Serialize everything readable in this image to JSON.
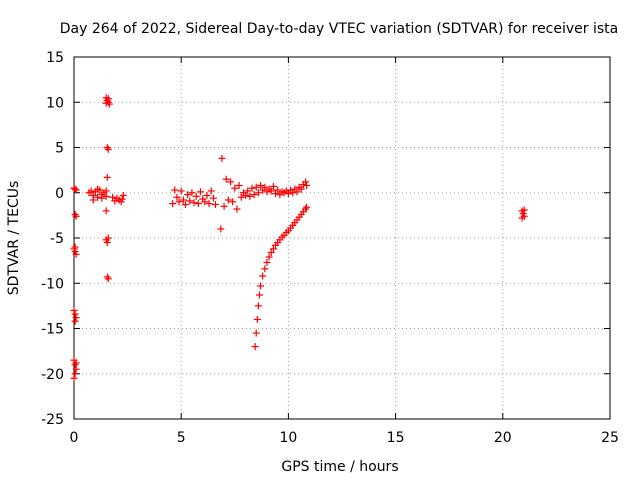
{
  "chart_data": {
    "type": "scatter",
    "title": "Day 264 of 2022, Sidereal Day-to-day VTEC variation (SDTVAR) for receiver ista",
    "xlabel": "GPS time / hours",
    "ylabel": "SDTVAR / TECUs",
    "xlim": [
      0,
      25
    ],
    "ylim": [
      -25,
      15
    ],
    "xticks": [
      0,
      5,
      10,
      15,
      20,
      25
    ],
    "yticks": [
      -25,
      -20,
      -15,
      -10,
      -5,
      0,
      5,
      10,
      15
    ],
    "grid": true,
    "marker": "+",
    "color": "#ff0000",
    "series": [
      {
        "name": "SDTVAR",
        "points": [
          [
            0.0,
            0.5
          ],
          [
            0.05,
            0.4
          ],
          [
            0.1,
            0.3
          ],
          [
            0.05,
            -2.4
          ],
          [
            0.1,
            -2.6
          ],
          [
            0.0,
            -6.2
          ],
          [
            0.05,
            -6.5
          ],
          [
            0.1,
            -6.8
          ],
          [
            0.05,
            -6.0
          ],
          [
            0.0,
            -13.0
          ],
          [
            0.05,
            -13.4
          ],
          [
            0.1,
            -13.8
          ],
          [
            0.05,
            -14.2
          ],
          [
            0.0,
            -18.5
          ],
          [
            0.05,
            -19.0
          ],
          [
            0.1,
            -19.5
          ],
          [
            0.05,
            -20.0
          ],
          [
            0.0,
            -20.5
          ],
          [
            0.1,
            -18.8
          ],
          [
            0.7,
            0.0
          ],
          [
            0.8,
            0.2
          ],
          [
            0.9,
            -0.3
          ],
          [
            1.0,
            0.1
          ],
          [
            1.1,
            -0.5
          ],
          [
            1.2,
            0.3
          ],
          [
            1.3,
            -0.2
          ],
          [
            1.4,
            0.0
          ],
          [
            1.5,
            -0.4
          ],
          [
            0.9,
            -0.8
          ],
          [
            1.1,
            0.4
          ],
          [
            1.3,
            -0.6
          ],
          [
            1.5,
            0.2
          ],
          [
            1.5,
            10.5
          ],
          [
            1.55,
            10.2
          ],
          [
            1.6,
            10.0
          ],
          [
            1.65,
            9.8
          ],
          [
            1.5,
            9.9
          ],
          [
            1.6,
            10.4
          ],
          [
            1.55,
            5.0
          ],
          [
            1.6,
            4.8
          ],
          [
            1.55,
            1.7
          ],
          [
            1.5,
            -2.0
          ],
          [
            1.5,
            -5.2
          ],
          [
            1.55,
            -5.5
          ],
          [
            1.6,
            -5.0
          ],
          [
            1.55,
            -9.3
          ],
          [
            1.6,
            -9.5
          ],
          [
            1.8,
            -0.5
          ],
          [
            1.9,
            -0.9
          ],
          [
            2.0,
            -0.6
          ],
          [
            2.1,
            -0.8
          ],
          [
            2.2,
            -1.0
          ],
          [
            2.3,
            -0.3
          ],
          [
            2.25,
            -0.7
          ],
          [
            4.6,
            -1.2
          ],
          [
            4.7,
            0.3
          ],
          [
            4.8,
            -0.5
          ],
          [
            4.9,
            -1.0
          ],
          [
            5.0,
            0.2
          ],
          [
            5.1,
            -0.8
          ],
          [
            5.2,
            -1.3
          ],
          [
            5.3,
            -0.2
          ],
          [
            5.4,
            -0.9
          ],
          [
            5.5,
            0.0
          ],
          [
            5.6,
            -1.1
          ],
          [
            5.7,
            -0.4
          ],
          [
            5.8,
            -1.2
          ],
          [
            5.9,
            0.1
          ],
          [
            6.0,
            -0.7
          ],
          [
            6.1,
            -1.0
          ],
          [
            6.2,
            -0.3
          ],
          [
            6.3,
            -1.2
          ],
          [
            6.4,
            0.2
          ],
          [
            6.5,
            -0.6
          ],
          [
            6.6,
            -1.3
          ],
          [
            6.9,
            3.8
          ],
          [
            6.85,
            -4.0
          ],
          [
            7.0,
            -1.5
          ],
          [
            7.1,
            1.5
          ],
          [
            7.2,
            -0.8
          ],
          [
            7.3,
            1.2
          ],
          [
            7.4,
            -1.0
          ],
          [
            7.5,
            0.5
          ],
          [
            7.6,
            -1.8
          ],
          [
            7.7,
            0.8
          ],
          [
            7.8,
            -0.5
          ],
          [
            7.9,
            0.0
          ],
          [
            8.0,
            -0.3
          ],
          [
            8.1,
            0.2
          ],
          [
            8.2,
            -0.4
          ],
          [
            8.3,
            0.5
          ],
          [
            8.4,
            -0.2
          ],
          [
            8.5,
            0.6
          ],
          [
            8.6,
            0.0
          ],
          [
            8.7,
            0.8
          ],
          [
            8.8,
            0.3
          ],
          [
            8.9,
            0.6
          ],
          [
            9.0,
            0.1
          ],
          [
            9.1,
            0.4
          ],
          [
            9.2,
            0.2
          ],
          [
            9.3,
            0.7
          ],
          [
            9.4,
            -0.1
          ],
          [
            9.5,
            0.3
          ],
          [
            9.6,
            -0.2
          ],
          [
            9.7,
            0.1
          ],
          [
            9.8,
            0.0
          ],
          [
            9.9,
            0.2
          ],
          [
            10.0,
            -0.1
          ],
          [
            10.1,
            0.3
          ],
          [
            10.2,
            0.0
          ],
          [
            10.3,
            0.4
          ],
          [
            10.4,
            0.1
          ],
          [
            10.5,
            0.6
          ],
          [
            10.6,
            0.4
          ],
          [
            10.7,
            0.9
          ],
          [
            10.8,
            1.2
          ],
          [
            10.85,
            0.8
          ],
          [
            8.45,
            -17.0
          ],
          [
            8.5,
            -15.5
          ],
          [
            8.55,
            -14.0
          ],
          [
            8.6,
            -12.5
          ],
          [
            8.65,
            -11.3
          ],
          [
            8.7,
            -10.3
          ],
          [
            8.8,
            -9.2
          ],
          [
            8.9,
            -8.4
          ],
          [
            9.0,
            -7.7
          ],
          [
            9.1,
            -7.1
          ],
          [
            9.2,
            -6.6
          ],
          [
            9.3,
            -6.2
          ],
          [
            9.4,
            -5.8
          ],
          [
            9.5,
            -5.5
          ],
          [
            9.6,
            -5.2
          ],
          [
            9.7,
            -4.9
          ],
          [
            9.8,
            -4.7
          ],
          [
            9.9,
            -4.4
          ],
          [
            10.0,
            -4.2
          ],
          [
            10.1,
            -3.9
          ],
          [
            10.2,
            -3.6
          ],
          [
            10.3,
            -3.3
          ],
          [
            10.4,
            -3.0
          ],
          [
            10.5,
            -2.7
          ],
          [
            10.6,
            -2.4
          ],
          [
            10.7,
            -2.1
          ],
          [
            10.8,
            -1.8
          ],
          [
            10.85,
            -1.6
          ],
          [
            20.9,
            -2.0
          ],
          [
            20.95,
            -2.3
          ],
          [
            21.0,
            -2.6
          ],
          [
            20.9,
            -2.8
          ],
          [
            21.0,
            -1.9
          ]
        ]
      }
    ]
  }
}
